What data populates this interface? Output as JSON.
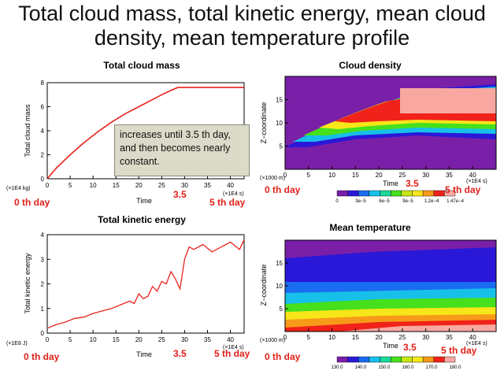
{
  "slide": {
    "title": "Total cloud mass, total kinetic energy, mean cloud density, mean temperature profile"
  },
  "annotations": {
    "callout": "increases until 3.5 th day, and then becomes nearly constant.",
    "day0": "0 th day",
    "day35": "3.5",
    "day5": "5 th day"
  },
  "chart_data": [
    {
      "type": "line",
      "title": "Total cloud mass",
      "xlabel": "Time",
      "ylabel": "Total cloud mass",
      "x_unit": "(×1E4 s)",
      "y_unit": "(×1E4 kg)",
      "xlim": [
        0,
        43
      ],
      "ylim": [
        0,
        8
      ],
      "xticks": [
        0,
        5,
        10,
        15,
        20,
        25,
        30,
        35,
        40
      ],
      "yticks": [
        0,
        2,
        4,
        6,
        8
      ],
      "color": "#e8231c",
      "series": [
        {
          "x": [
            0,
            2,
            5,
            8,
            11,
            14,
            17,
            20,
            23,
            25,
            27,
            28.5,
            30,
            33,
            36,
            40,
            43
          ],
          "y": [
            0,
            0.9,
            2.0,
            3.0,
            3.9,
            4.7,
            5.4,
            6.0,
            6.6,
            7.0,
            7.35,
            7.6,
            7.6,
            7.6,
            7.6,
            7.6,
            7.6
          ]
        }
      ]
    },
    {
      "type": "heatmap",
      "title": "Cloud density",
      "xlabel": "Time",
      "ylabel": "Z−coordinate",
      "x_unit": "(×1E4 s)",
      "y_unit": "(×1000 m)",
      "xlim": [
        0,
        45
      ],
      "ylim": [
        0,
        20
      ],
      "xticks": [
        0,
        5,
        10,
        15,
        20,
        25,
        30,
        35,
        40
      ],
      "yticks": [
        5,
        10,
        15
      ],
      "colorbar_labels": [
        "0",
        "3e−5",
        "6e−5",
        "9e−5",
        "1.2e−4",
        "1.47e−4"
      ],
      "colorbar_colors": [
        "#7a1fa8",
        "#2a18d8",
        "#1a6cf0",
        "#17c0e8",
        "#19d99a",
        "#46e01c",
        "#c6e616",
        "#f7e619",
        "#f79a19",
        "#f0221a",
        "#f8a8a0"
      ]
    },
    {
      "type": "line",
      "title": "Total kinetic energy",
      "xlabel": "Time",
      "ylabel": "Total kinetic energy",
      "x_unit": "(×1E4 s)",
      "y_unit": "(×1E8 J)",
      "xlim": [
        0,
        43
      ],
      "ylim": [
        0,
        4
      ],
      "xticks": [
        0,
        5,
        10,
        15,
        20,
        25,
        30,
        35,
        40
      ],
      "yticks": [
        0,
        1,
        2,
        3,
        4
      ],
      "color": "#e8231c",
      "series": [
        {
          "x": [
            0,
            2,
            4,
            6,
            8,
            10,
            12,
            14,
            16,
            18,
            19,
            20,
            21,
            22,
            23,
            24,
            25,
            26,
            27,
            28,
            29,
            30,
            31,
            32,
            34,
            36,
            38,
            40,
            42,
            43
          ],
          "y": [
            0.2,
            0.35,
            0.45,
            0.6,
            0.65,
            0.8,
            0.9,
            1.0,
            1.15,
            1.3,
            1.2,
            1.6,
            1.4,
            1.5,
            1.9,
            1.7,
            2.1,
            2.0,
            2.5,
            2.2,
            1.8,
            3.0,
            3.5,
            3.4,
            3.6,
            3.3,
            3.5,
            3.7,
            3.4,
            3.8
          ]
        }
      ]
    },
    {
      "type": "heatmap",
      "title": "Mean temperature",
      "xlabel": "Time",
      "ylabel": "Z−coordinate",
      "x_unit": "(×1E4 s)",
      "y_unit": "(×1000 m)",
      "xlim": [
        0,
        45
      ],
      "ylim": [
        0,
        20
      ],
      "xticks": [
        0,
        5,
        10,
        15,
        20,
        25,
        30,
        35,
        40
      ],
      "yticks": [
        5,
        10,
        15
      ],
      "colorbar_labels": [
        "130.0",
        "140.0",
        "150.0",
        "160.0",
        "170.0",
        "180.0"
      ],
      "colorbar_colors": [
        "#7a1fa8",
        "#2a18d8",
        "#1a6cf0",
        "#17c0e8",
        "#19d99a",
        "#46e01c",
        "#c6e616",
        "#f7e619",
        "#f79a19",
        "#f0221a",
        "#f8a8a0"
      ]
    }
  ]
}
